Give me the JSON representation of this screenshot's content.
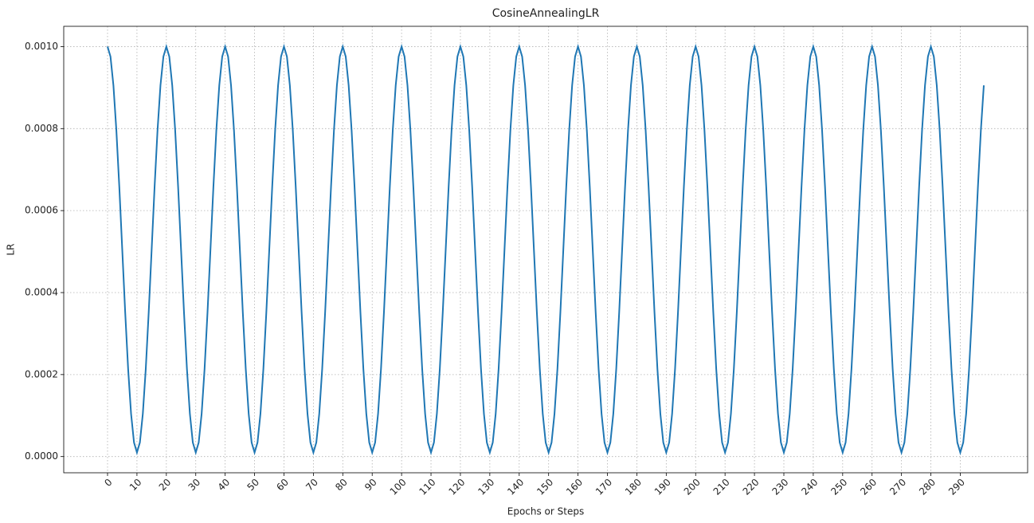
{
  "chart_data": {
    "type": "line",
    "title": "CosineAnnealingLR",
    "x_label": "Epochs or Steps",
    "y_label": "LR",
    "color": "#1f77b4",
    "grid": true,
    "xlim": [
      -14.9,
      312.9
    ],
    "ylim": [
      -3.95e-05,
      0.0010495
    ],
    "xticks": [
      0,
      10,
      20,
      30,
      40,
      50,
      60,
      70,
      80,
      90,
      100,
      110,
      120,
      130,
      140,
      150,
      160,
      170,
      180,
      190,
      200,
      210,
      220,
      230,
      240,
      250,
      260,
      270,
      280,
      290
    ],
    "yticks": [
      {
        "value": 0,
        "label": "0.0000"
      },
      {
        "value": 0.0002,
        "label": "0.0002"
      },
      {
        "value": 0.0004,
        "label": "0.0004"
      },
      {
        "value": 0.0006,
        "label": "0.0006"
      },
      {
        "value": 0.0008,
        "label": "0.0008"
      },
      {
        "value": 0.001,
        "label": "0.0010"
      }
    ],
    "x": [
      0,
      1,
      2,
      3,
      4,
      5,
      6,
      7,
      8,
      9,
      10,
      11,
      12,
      13,
      14,
      15,
      16,
      17,
      18,
      19,
      20,
      21,
      22,
      23,
      24,
      25,
      26,
      27,
      28,
      29,
      30,
      31,
      32,
      33,
      34,
      35,
      36,
      37,
      38,
      39,
      40,
      41,
      42,
      43,
      44,
      45,
      46,
      47,
      48,
      49,
      50,
      51,
      52,
      53,
      54,
      55,
      56,
      57,
      58,
      59,
      60,
      61,
      62,
      63,
      64,
      65,
      66,
      67,
      68,
      69,
      70,
      71,
      72,
      73,
      74,
      75,
      76,
      77,
      78,
      79,
      80,
      81,
      82,
      83,
      84,
      85,
      86,
      87,
      88,
      89,
      90,
      91,
      92,
      93,
      94,
      95,
      96,
      97,
      98,
      99,
      100,
      101,
      102,
      103,
      104,
      105,
      106,
      107,
      108,
      109,
      110,
      111,
      112,
      113,
      114,
      115,
      116,
      117,
      118,
      119,
      120,
      121,
      122,
      123,
      124,
      125,
      126,
      127,
      128,
      129,
      130,
      131,
      132,
      133,
      134,
      135,
      136,
      137,
      138,
      139,
      140,
      141,
      142,
      143,
      144,
      145,
      146,
      147,
      148,
      149,
      150,
      151,
      152,
      153,
      154,
      155,
      156,
      157,
      158,
      159,
      160,
      161,
      162,
      163,
      164,
      165,
      166,
      167,
      168,
      169,
      170,
      171,
      172,
      173,
      174,
      175,
      176,
      177,
      178,
      179,
      180,
      181,
      182,
      183,
      184,
      185,
      186,
      187,
      188,
      189,
      190,
      191,
      192,
      193,
      194,
      195,
      196,
      197,
      198,
      199,
      200,
      201,
      202,
      203,
      204,
      205,
      206,
      207,
      208,
      209,
      210,
      211,
      212,
      213,
      214,
      215,
      216,
      217,
      218,
      219,
      220,
      221,
      222,
      223,
      224,
      225,
      226,
      227,
      228,
      229,
      230,
      231,
      232,
      233,
      234,
      235,
      236,
      237,
      238,
      239,
      240,
      241,
      242,
      243,
      244,
      245,
      246,
      247,
      248,
      249,
      250,
      251,
      252,
      253,
      254,
      255,
      256,
      257,
      258,
      259,
      260,
      261,
      262,
      263,
      264,
      265,
      266,
      267,
      268,
      269,
      270,
      271,
      272,
      273,
      274,
      275,
      276,
      277,
      278,
      279,
      280,
      281,
      282,
      283,
      284,
      285,
      286,
      287,
      288,
      289,
      290,
      291,
      292,
      293,
      294,
      295,
      296,
      297,
      298
    ],
    "values": [
      0.001,
      0.00097577,
      0.00090546,
      0.00079595,
      0.00065796,
      0.000505,
      0.00035204,
      0.00021405,
      0.00010454,
      3.423e-05,
      1e-05,
      3.423e-05,
      0.00010454,
      0.00021405,
      0.00035204,
      0.000505,
      0.00065796,
      0.00079595,
      0.00090546,
      0.00097577,
      0.001,
      0.00097577,
      0.00090546,
      0.00079595,
      0.00065796,
      0.000505,
      0.00035204,
      0.00021405,
      0.00010454,
      3.423e-05,
      1e-05,
      3.423e-05,
      0.00010454,
      0.00021405,
      0.00035204,
      0.000505,
      0.00065796,
      0.00079595,
      0.00090546,
      0.00097577,
      0.001,
      0.00097577,
      0.00090546,
      0.00079595,
      0.00065796,
      0.000505,
      0.00035204,
      0.00021405,
      0.00010454,
      3.423e-05,
      1e-05,
      3.423e-05,
      0.00010454,
      0.00021405,
      0.00035204,
      0.000505,
      0.00065796,
      0.00079595,
      0.00090546,
      0.00097577,
      0.001,
      0.00097577,
      0.00090546,
      0.00079595,
      0.00065796,
      0.000505,
      0.00035204,
      0.00021405,
      0.00010454,
      3.423e-05,
      1e-05,
      3.423e-05,
      0.00010454,
      0.00021405,
      0.00035204,
      0.000505,
      0.00065796,
      0.00079595,
      0.00090546,
      0.00097577,
      0.001,
      0.00097577,
      0.00090546,
      0.00079595,
      0.00065796,
      0.000505,
      0.00035204,
      0.00021405,
      0.00010454,
      3.423e-05,
      1e-05,
      3.423e-05,
      0.00010454,
      0.00021405,
      0.00035204,
      0.000505,
      0.00065796,
      0.00079595,
      0.00090546,
      0.00097577,
      0.001,
      0.00097577,
      0.00090546,
      0.00079595,
      0.00065796,
      0.000505,
      0.00035204,
      0.00021405,
      0.00010454,
      3.423e-05,
      1e-05,
      3.423e-05,
      0.00010454,
      0.00021405,
      0.00035204,
      0.000505,
      0.00065796,
      0.00079595,
      0.00090546,
      0.00097577,
      0.001,
      0.00097577,
      0.00090546,
      0.00079595,
      0.00065796,
      0.000505,
      0.00035204,
      0.00021405,
      0.00010454,
      3.423e-05,
      1e-05,
      3.423e-05,
      0.00010454,
      0.00021405,
      0.00035204,
      0.000505,
      0.00065796,
      0.00079595,
      0.00090546,
      0.00097577,
      0.001,
      0.00097577,
      0.00090546,
      0.00079595,
      0.00065796,
      0.000505,
      0.00035204,
      0.00021405,
      0.00010454,
      3.423e-05,
      1e-05,
      3.423e-05,
      0.00010454,
      0.00021405,
      0.00035204,
      0.000505,
      0.00065796,
      0.00079595,
      0.00090546,
      0.00097577,
      0.001,
      0.00097577,
      0.00090546,
      0.00079595,
      0.00065796,
      0.000505,
      0.00035204,
      0.00021405,
      0.00010454,
      3.423e-05,
      1e-05,
      3.423e-05,
      0.00010454,
      0.00021405,
      0.00035204,
      0.000505,
      0.00065796,
      0.00079595,
      0.00090546,
      0.00097577,
      0.001,
      0.00097577,
      0.00090546,
      0.00079595,
      0.00065796,
      0.000505,
      0.00035204,
      0.00021405,
      0.00010454,
      3.423e-05,
      1e-05,
      3.423e-05,
      0.00010454,
      0.00021405,
      0.00035204,
      0.000505,
      0.00065796,
      0.00079595,
      0.00090546,
      0.00097577,
      0.001,
      0.00097577,
      0.00090546,
      0.00079595,
      0.00065796,
      0.000505,
      0.00035204,
      0.00021405,
      0.00010454,
      3.423e-05,
      1e-05,
      3.423e-05,
      0.00010454,
      0.00021405,
      0.00035204,
      0.000505,
      0.00065796,
      0.00079595,
      0.00090546,
      0.00097577,
      0.001,
      0.00097577,
      0.00090546,
      0.00079595,
      0.00065796,
      0.000505,
      0.00035204,
      0.00021405,
      0.00010454,
      3.423e-05,
      1e-05,
      3.423e-05,
      0.00010454,
      0.00021405,
      0.00035204,
      0.000505,
      0.00065796,
      0.00079595,
      0.00090546,
      0.00097577,
      0.001,
      0.00097577,
      0.00090546,
      0.00079595,
      0.00065796,
      0.000505,
      0.00035204,
      0.00021405,
      0.00010454,
      3.423e-05,
      1e-05,
      3.423e-05,
      0.00010454,
      0.00021405,
      0.00035204,
      0.000505,
      0.00065796,
      0.00079595,
      0.00090546,
      0.00097577,
      0.001,
      0.00097577,
      0.00090546,
      0.00079595,
      0.00065796,
      0.000505,
      0.00035204,
      0.00021405,
      0.00010454,
      3.423e-05,
      1e-05,
      3.423e-05,
      0.00010454,
      0.00021405,
      0.00035204,
      0.000505,
      0.00065796,
      0.00079595,
      0.00090546,
      0.00097577,
      0.001,
      0.00097577,
      0.00090546,
      0.00079595,
      0.00065796,
      0.000505,
      0.00035204,
      0.00021405,
      0.00010454,
      3.423e-05,
      1e-05,
      3.423e-05,
      0.00010454,
      0.00021405,
      0.00035204,
      0.000505,
      0.00065796,
      0.00079595,
      0.00090546
    ]
  }
}
